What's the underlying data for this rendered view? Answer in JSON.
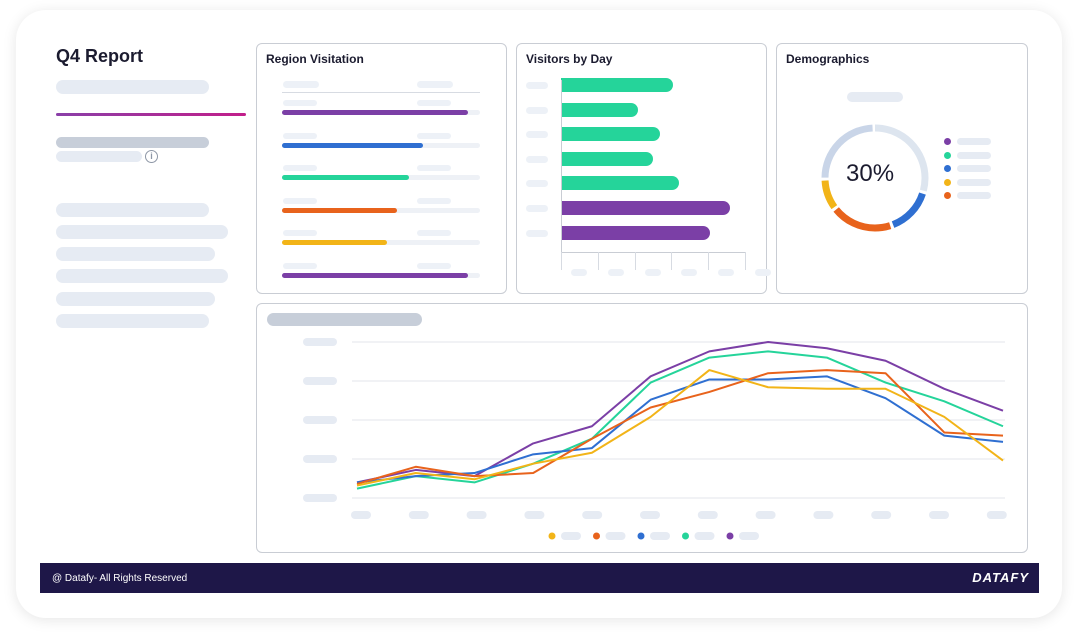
{
  "report": {
    "title": "Q4 Report"
  },
  "panels": {
    "region": {
      "title": "Region Visitation",
      "bars": [
        {
          "value": 0.94,
          "color": "#7b3fa6"
        },
        {
          "value": 0.71,
          "color": "#2f6fd1"
        },
        {
          "value": 0.64,
          "color": "#25d49a"
        },
        {
          "value": 0.58,
          "color": "#e8631c"
        },
        {
          "value": 0.53,
          "color": "#f2b418"
        },
        {
          "value": 0.94,
          "color": "#7b3fa6"
        }
      ]
    },
    "visitors": {
      "title": "Visitors by Day",
      "bars": [
        {
          "value": 0.61,
          "color": "#25d49a"
        },
        {
          "value": 0.42,
          "color": "#25d49a"
        },
        {
          "value": 0.54,
          "color": "#25d49a"
        },
        {
          "value": 0.5,
          "color": "#25d49a"
        },
        {
          "value": 0.64,
          "color": "#25d49a"
        },
        {
          "value": 0.92,
          "color": "#7b3fa6"
        },
        {
          "value": 0.81,
          "color": "#7b3fa6"
        }
      ]
    },
    "demographics": {
      "title": "Demographics",
      "center_label": "30%",
      "segments": [
        {
          "fraction": 0.3,
          "color": "#dde5ef"
        },
        {
          "fraction": 0.15,
          "color": "#2f6fd1"
        },
        {
          "fraction": 0.2,
          "color": "#e8631c"
        },
        {
          "fraction": 0.1,
          "color": "#f2b418"
        },
        {
          "fraction": 0.25,
          "color": "#c9d5e8"
        }
      ],
      "legend_colors": [
        "#7b3fa6",
        "#25d49a",
        "#2f6fd1",
        "#f2b418",
        "#e8631c"
      ]
    }
  },
  "chart_data": {
    "type": "line",
    "x": [
      0,
      1,
      2,
      3,
      4,
      5,
      6,
      7,
      8,
      9,
      10,
      11
    ],
    "ylim": [
      0,
      100
    ],
    "series": [
      {
        "color": "#7b3fa6",
        "values": [
          10,
          18,
          14,
          35,
          46,
          78,
          94,
          100,
          96,
          88,
          70,
          56
        ]
      },
      {
        "color": "#25d49a",
        "values": [
          6,
          14,
          10,
          22,
          38,
          74,
          90,
          94,
          90,
          74,
          62,
          46
        ]
      },
      {
        "color": "#2f6fd1",
        "values": [
          10,
          14,
          16,
          28,
          32,
          63,
          76,
          76,
          78,
          64,
          40,
          36
        ]
      },
      {
        "color": "#e8631c",
        "values": [
          9,
          20,
          14,
          16,
          38,
          58,
          68,
          80,
          82,
          80,
          42,
          40
        ]
      },
      {
        "color": "#f2b418",
        "values": [
          8,
          16,
          12,
          22,
          29,
          52,
          82,
          71,
          70,
          70,
          52,
          24
        ]
      }
    ],
    "legend_colors": [
      "#f2b418",
      "#e8631c",
      "#2f6fd1",
      "#25d49a",
      "#7b3fa6"
    ]
  },
  "footer": {
    "copyright": "@ Datafy- All Rights Reserved",
    "brand": "DATAFY"
  }
}
